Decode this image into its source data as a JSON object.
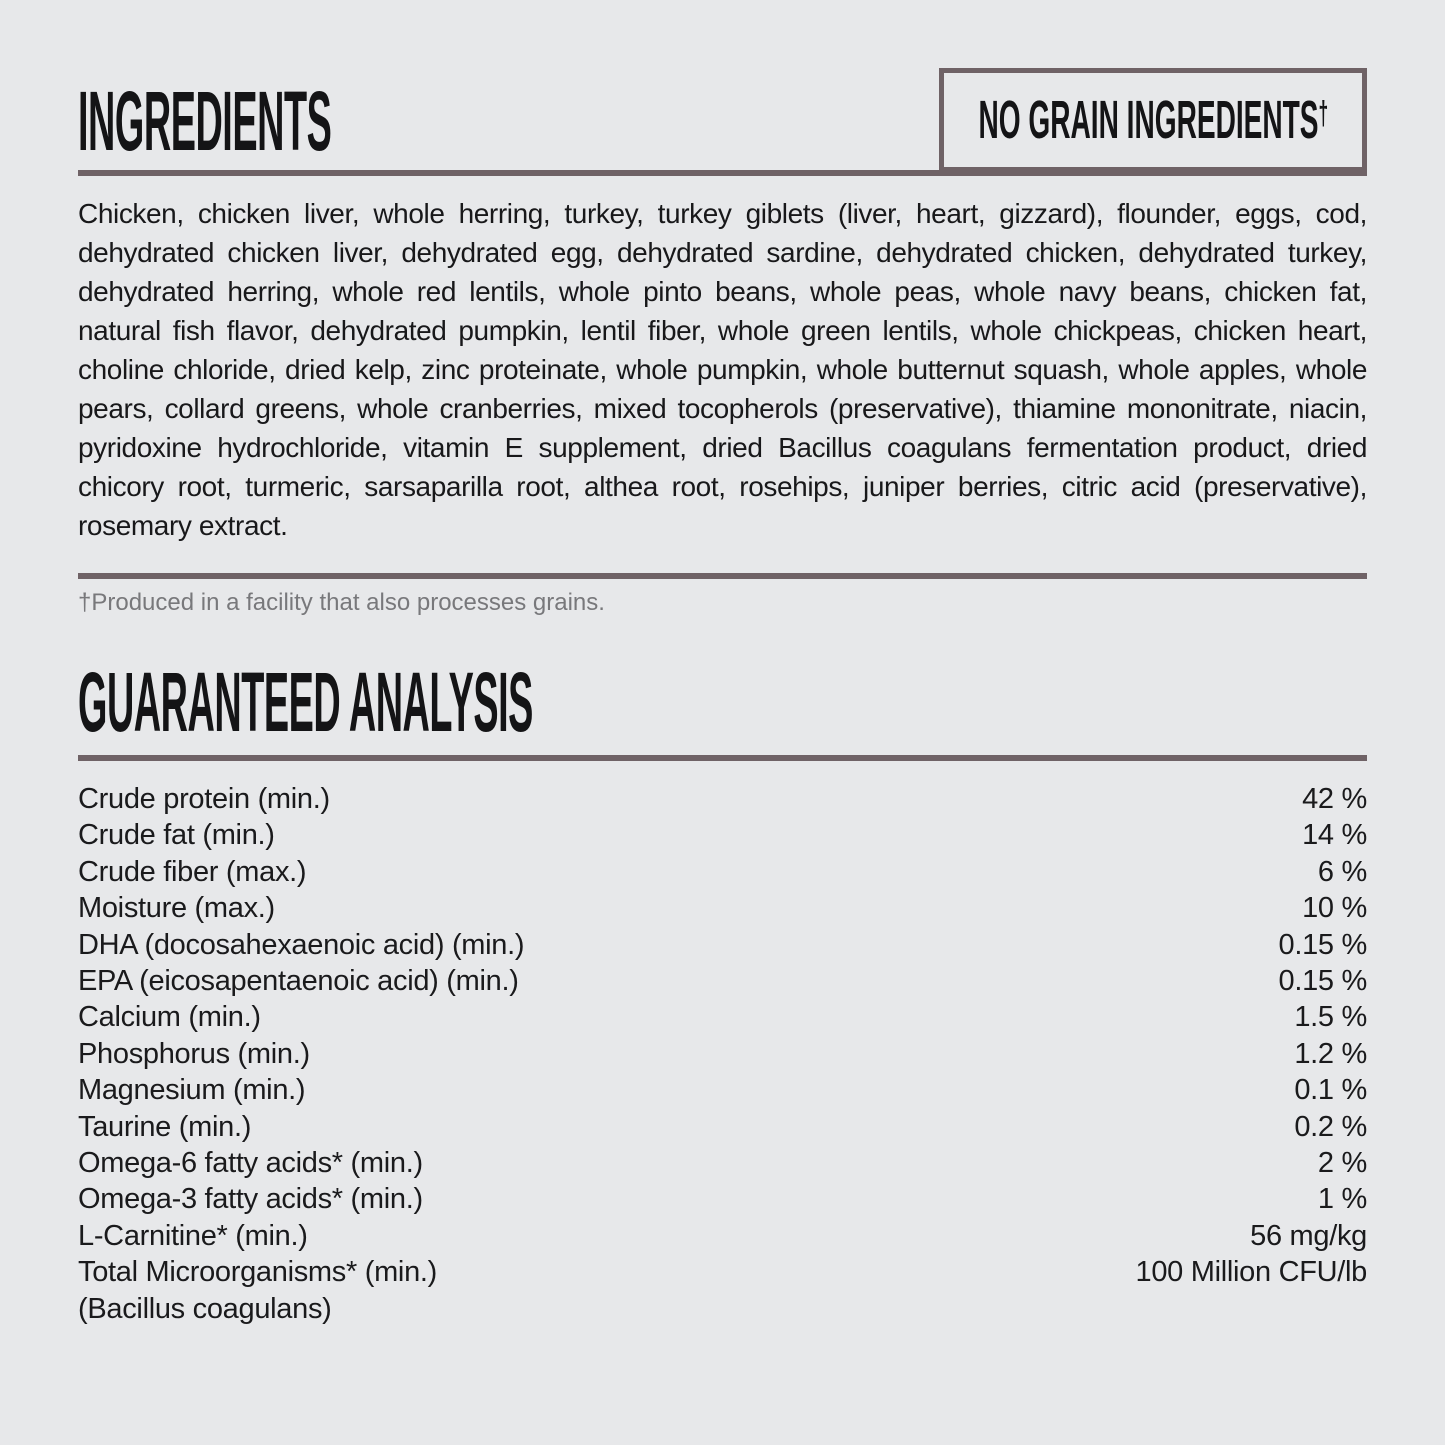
{
  "page": {
    "background_color": "#e7e8ea",
    "rule_color": "#6f6266",
    "text_color": "#1a1a1c",
    "footnote_color": "#78787b"
  },
  "ingredients_section": {
    "title": "INGREDIENTS",
    "badge": {
      "label": "NO GRAIN INGREDIENTS",
      "dagger": "†"
    },
    "body": "Chicken, chicken liver, whole herring, turkey, turkey giblets (liver, heart, gizzard), flounder, eggs, cod, dehydrated chicken liver, dehydrated egg, dehydrated sardine, dehydrated chicken, dehydrated turkey, dehydrated herring, whole red lentils, whole pinto beans, whole peas, whole navy beans, chicken fat, natural fish flavor, dehydrated pumpkin, lentil fiber, whole green lentils, whole chickpeas, chicken heart, choline chloride, dried kelp, zinc proteinate, whole pumpkin, whole butternut squash, whole apples, whole pears, collard greens, whole cranberries, mixed tocopherols (preservative), thiamine mononitrate, niacin, pyridoxine hydrochloride, vitamin E supplement, dried Bacillus coagulans fermentation product, dried chicory root, turmeric, sarsaparilla root, althea root, rosehips, juniper berries, citric acid (preservative), rosemary extract.",
    "footnote": "†Produced in a facility that also processes grains."
  },
  "analysis_section": {
    "title": "GUARANTEED ANALYSIS",
    "rows": [
      {
        "label": "Crude protein (min.)",
        "value": "42 %"
      },
      {
        "label": "Crude fat (min.)",
        "value": "14 %"
      },
      {
        "label": "Crude fiber (max.)",
        "value": "6 %"
      },
      {
        "label": "Moisture (max.)",
        "value": "10 %"
      },
      {
        "label": "DHA (docosahexaenoic acid) (min.)",
        "value": "0.15 %"
      },
      {
        "label": "EPA (eicosapentaenoic acid) (min.)",
        "value": "0.15 %"
      },
      {
        "label": "Calcium (min.)",
        "value": "1.5 %"
      },
      {
        "label": "Phosphorus (min.)",
        "value": "1.2 %"
      },
      {
        "label": "Magnesium (min.)",
        "value": "0.1 %"
      },
      {
        "label": "Taurine (min.)",
        "value": "0.2 %"
      },
      {
        "label": "Omega-6 fatty acids* (min.)",
        "value": "2 %"
      },
      {
        "label": "Omega-3 fatty acids* (min.)",
        "value": "1 %"
      },
      {
        "label": "L-Carnitine* (min.)",
        "value": "56 mg/kg"
      },
      {
        "label": "Total Microorganisms* (min.)",
        "value": "100 Million CFU/lb"
      },
      {
        "label": "(Bacillus coagulans)",
        "value": ""
      }
    ]
  }
}
